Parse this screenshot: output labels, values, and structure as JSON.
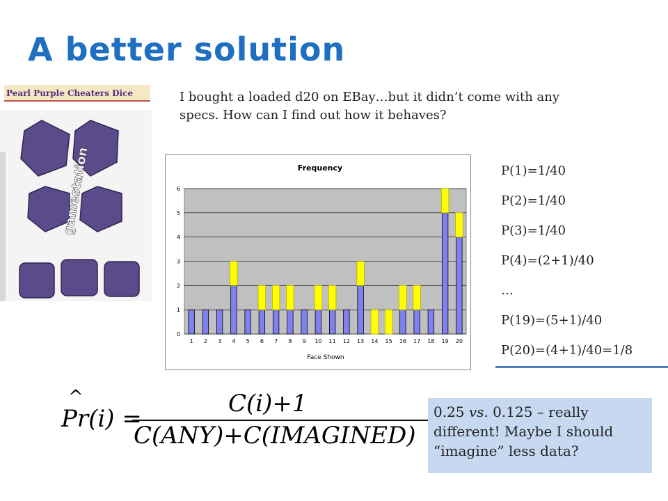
{
  "slide": {
    "title": "A better solution",
    "intro_text": "I bought a loaded d20 on EBay…but it didn’t come with any specs.  How can I find out how it behaves?"
  },
  "product": {
    "banner": "Pearl Purple Cheaters Dice",
    "watermark": "gamestation"
  },
  "probabilities": [
    "P(1)=1/40",
    "P(2)=1/40",
    "P(3)=1/40",
    "P(4)=(2+1)/40",
    "…",
    "P(19)=(5+1)/40",
    "P(20)=(4+1)/40=1/8"
  ],
  "formula": {
    "lhs": "Pr(i) =",
    "numerator": "C(i)+1",
    "denominator": "C(ANY)+C(IMAGINED)"
  },
  "note": {
    "value_a": "0.25",
    "vs": "vs.",
    "value_b": "0.125 – really different! Maybe I should “imagine” less data?"
  },
  "chart_data": {
    "type": "bar",
    "title": "Frequency",
    "xlabel": "Face Shown",
    "ylabel": "",
    "ylim": [
      0,
      6
    ],
    "yticks": [
      0,
      1,
      2,
      3,
      4,
      5,
      6
    ],
    "categories": [
      "1",
      "2",
      "3",
      "4",
      "5",
      "6",
      "7",
      "8",
      "9",
      "10",
      "11",
      "12",
      "13",
      "14",
      "15",
      "16",
      "17",
      "18",
      "19",
      "20"
    ],
    "series": [
      {
        "values": [
          1,
          1,
          1,
          2,
          1,
          1,
          1,
          1,
          1,
          1,
          1,
          1,
          2,
          0,
          0,
          1,
          1,
          1,
          5,
          4
        ]
      },
      {
        "values": [
          0,
          0,
          0,
          1,
          0,
          1,
          1,
          1,
          0,
          1,
          1,
          0,
          1,
          1,
          1,
          1,
          1,
          0,
          1,
          1
        ]
      }
    ],
    "colors": {
      "base": "#8080f0",
      "imagined": "#ffff00",
      "plot_bg": "#c0c0c0"
    },
    "grid": true,
    "legend": "none"
  },
  "colors": {
    "title": "#1f6fc0",
    "note_bg": "#c6d9f1",
    "underline": "#4f81bd"
  }
}
